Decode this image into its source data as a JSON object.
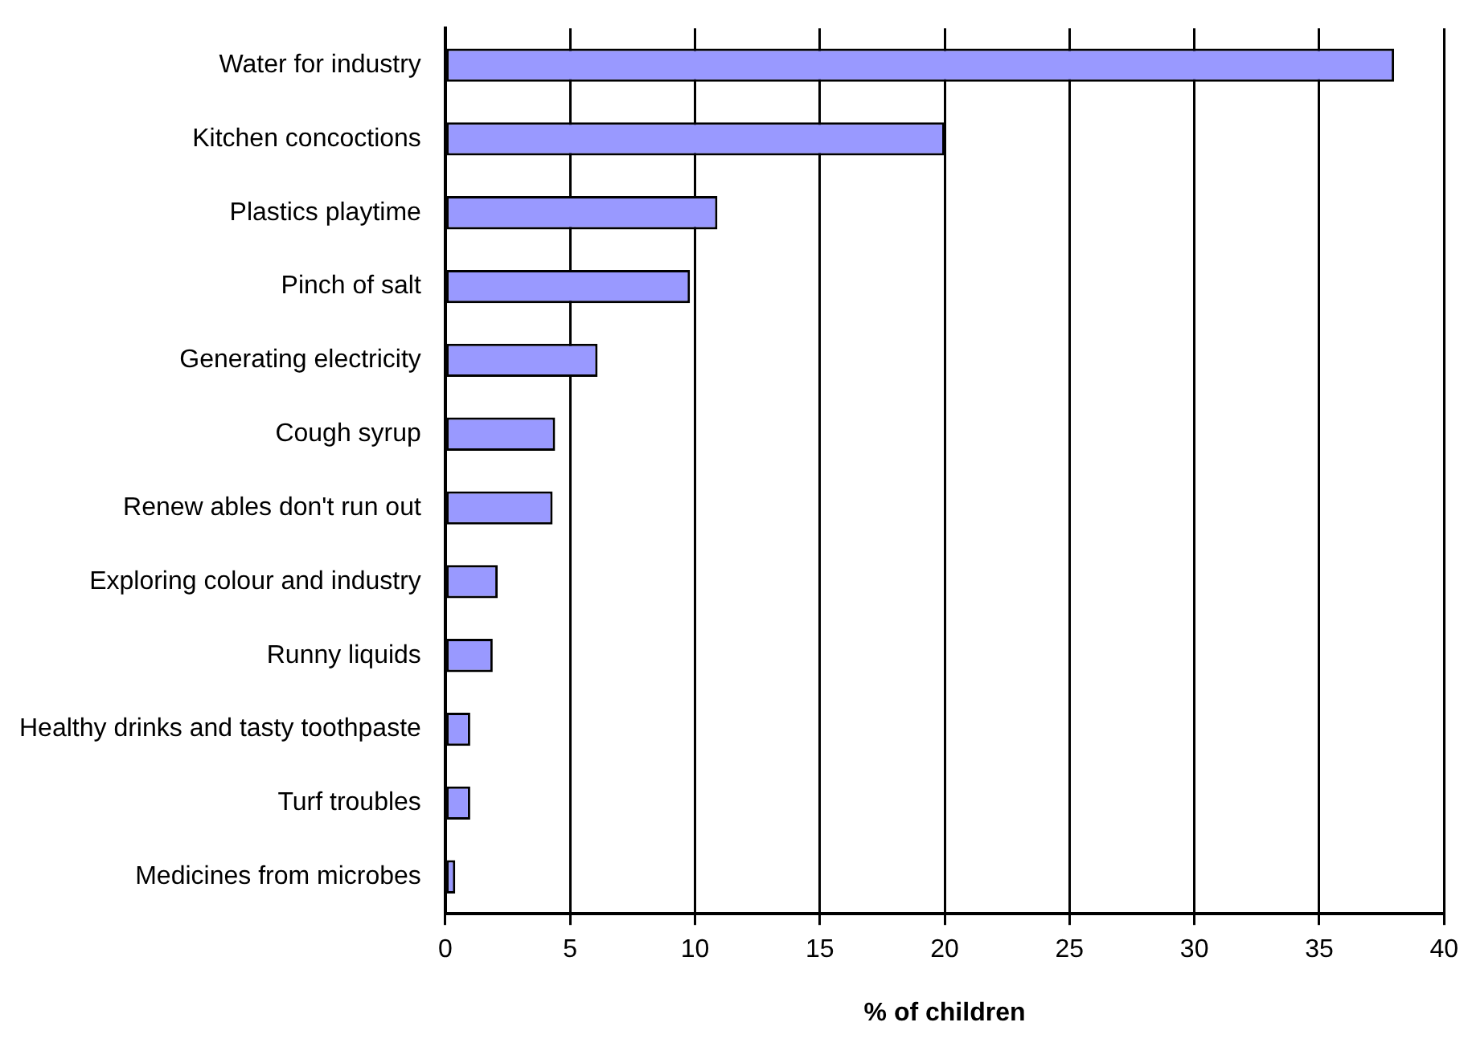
{
  "chart_data": {
    "type": "bar",
    "orientation": "horizontal",
    "xlabel": "% of children",
    "categories": [
      "Water for industry",
      "Kitchen concoctions",
      "Plastics playtime",
      "Pinch of salt",
      "Generating electricity",
      "Cough syrup",
      "Renew ables don't run out",
      "Exploring colour and industry",
      "Runny liquids",
      "Healthy drinks and tasty toothpaste",
      "Turf troubles",
      "Medicines from microbes"
    ],
    "values": [
      38,
      20,
      10.9,
      9.8,
      6.1,
      4.4,
      4.3,
      2.1,
      1.9,
      1.0,
      1.0,
      0.4
    ],
    "color": "#9999ff",
    "xlim": [
      0,
      40
    ],
    "xticks": [
      0,
      5,
      10,
      15,
      20,
      25,
      30,
      35,
      40
    ],
    "grid": "x",
    "legend": false
  }
}
